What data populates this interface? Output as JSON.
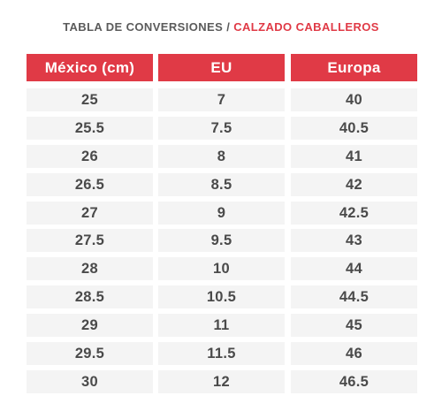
{
  "header": {
    "title_part1": "TABLA DE CONVERSIONES",
    "separator": "/",
    "title_part2": "CALZADO CABALLEROS",
    "accent_color": "#e03a46",
    "text_color": "#5b5b5b"
  },
  "table": {
    "columns": [
      "México (cm)",
      "EU",
      "Europa"
    ],
    "rows": [
      [
        "25",
        "7",
        "40"
      ],
      [
        "25.5",
        "7.5",
        "40.5"
      ],
      [
        "26",
        "8",
        "41"
      ],
      [
        "26.5",
        "8.5",
        "42"
      ],
      [
        "27",
        "9",
        "42.5"
      ],
      [
        "27.5",
        "9.5",
        "43"
      ],
      [
        "28",
        "10",
        "44"
      ],
      [
        "28.5",
        "10.5",
        "44.5"
      ],
      [
        "29",
        "11",
        "45"
      ],
      [
        "29.5",
        "11.5",
        "46"
      ],
      [
        "30",
        "12",
        "46.5"
      ]
    ]
  }
}
